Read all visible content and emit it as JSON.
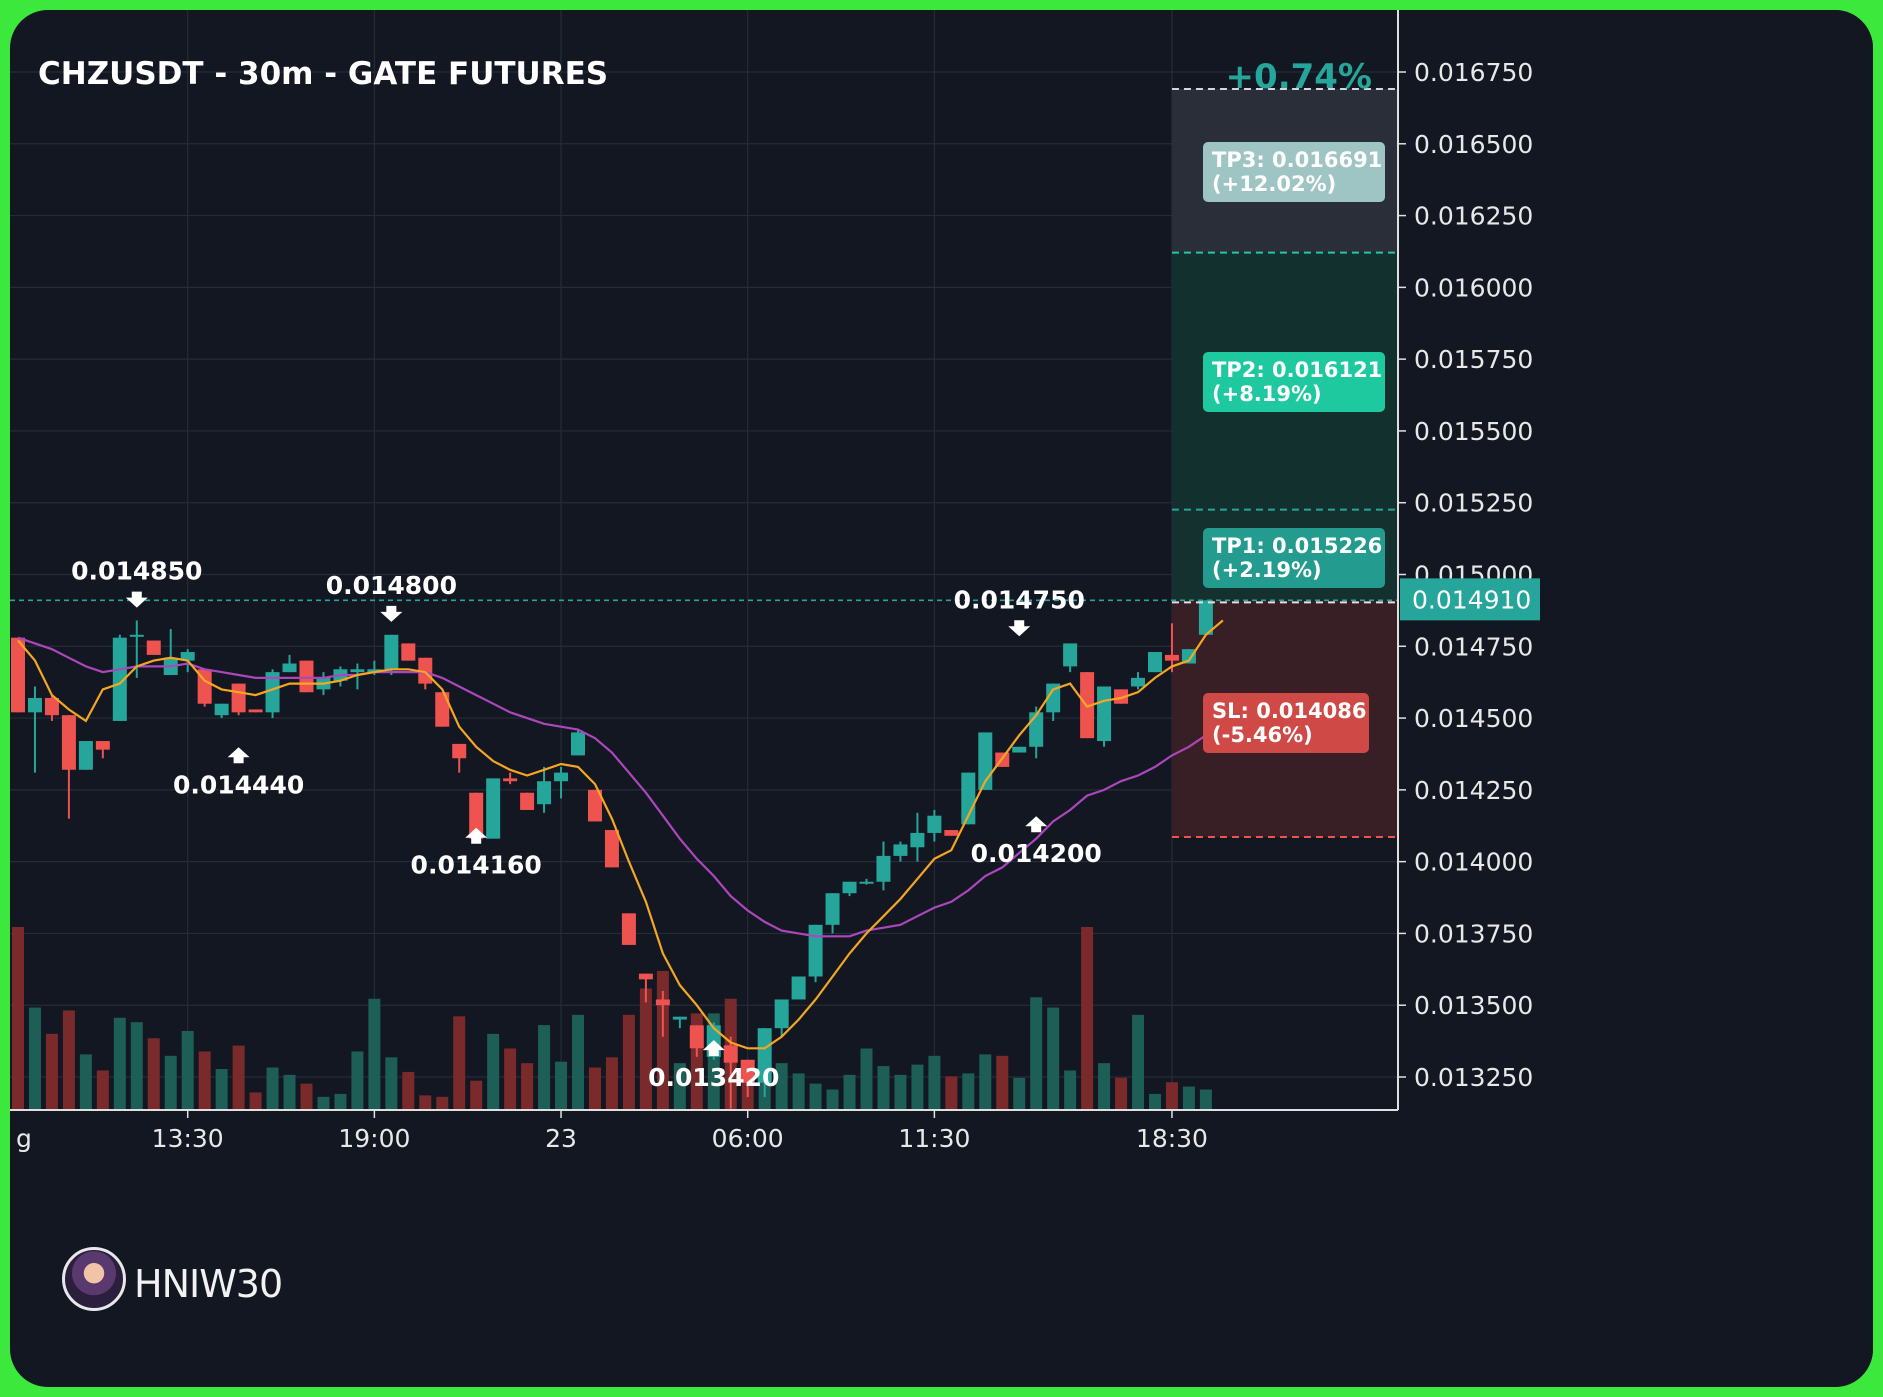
{
  "chart_data": {
    "type": "candlestick",
    "title": "CHZUSDT - 30m - GATE FUTURES",
    "change_label": "+0.74%",
    "ylim": [
      0.01315,
      0.01685
    ],
    "y_ticks": [
      "0.016750",
      "0.016500",
      "0.016250",
      "0.016000",
      "0.015750",
      "0.015500",
      "0.015250",
      "0.015000",
      "0.014750",
      "0.014500",
      "0.014250",
      "0.014000",
      "0.013750",
      "0.013500",
      "0.013250"
    ],
    "x_ticks": [
      {
        "label": "g",
        "index": -11
      },
      {
        "label": "13:30",
        "index": 10
      },
      {
        "label": "19:00",
        "index": 21
      },
      {
        "label": "23",
        "index": 32
      },
      {
        "label": "06:00",
        "index": 43
      },
      {
        "label": "11:30",
        "index": 54
      },
      {
        "label": "18:30",
        "index": 68
      }
    ],
    "current_price": "0.014910",
    "current_price_value": 0.01491,
    "levels": [
      {
        "name": "TP3",
        "label": "TP3: 0.016691",
        "pct": "(+12.02%)",
        "value": 0.016691
      },
      {
        "name": "TP2",
        "label": "TP2: 0.016121",
        "pct": "(+8.19%)",
        "value": 0.016121
      },
      {
        "name": "TP1",
        "label": "TP1: 0.015226",
        "pct": "(+2.19%)",
        "value": 0.015226
      },
      {
        "name": "SL",
        "label": "SL: 0.014086",
        "pct": "(-5.46%)",
        "value": 0.014086
      }
    ],
    "candles": [
      [
        0.01478,
        0.01478,
        0.01452,
        0.01452,
        1250
      ],
      [
        0.01452,
        0.01461,
        0.01431,
        0.01457,
        700
      ],
      [
        0.01457,
        0.01458,
        0.01449,
        0.01451,
        520
      ],
      [
        0.01451,
        0.01451,
        0.01415,
        0.01432,
        680
      ],
      [
        0.01432,
        0.01442,
        0.01432,
        0.01442,
        380
      ],
      [
        0.01442,
        0.01442,
        0.01436,
        0.01439,
        270
      ],
      [
        0.01449,
        0.01479,
        0.01449,
        0.01478,
        630
      ],
      [
        0.01479,
        0.01484,
        0.01464,
        0.01479,
        600
      ],
      [
        0.01477,
        0.01477,
        0.01472,
        0.01472,
        490
      ],
      [
        0.01465,
        0.01481,
        0.01465,
        0.01471,
        370
      ],
      [
        0.0147,
        0.01474,
        0.01466,
        0.01473,
        540
      ],
      [
        0.01467,
        0.01467,
        0.01454,
        0.01455,
        400
      ],
      [
        0.01451,
        0.01455,
        0.0145,
        0.01455,
        280
      ],
      [
        0.01462,
        0.01462,
        0.01451,
        0.01452,
        440
      ],
      [
        0.01453,
        0.01453,
        0.01452,
        0.01452,
        120
      ],
      [
        0.01452,
        0.01467,
        0.0145,
        0.01466,
        290
      ],
      [
        0.01466,
        0.01472,
        0.01466,
        0.01469,
        240
      ],
      [
        0.0147,
        0.0147,
        0.01459,
        0.01459,
        180
      ],
      [
        0.0146,
        0.01466,
        0.01458,
        0.01464,
        90
      ],
      [
        0.01463,
        0.01468,
        0.01461,
        0.01467,
        110
      ],
      [
        0.01466,
        0.01469,
        0.0146,
        0.01467,
        400
      ],
      [
        0.01466,
        0.0147,
        0.01465,
        0.01467,
        760
      ],
      [
        0.01467,
        0.01479,
        0.01465,
        0.01479,
        360
      ],
      [
        0.01476,
        0.01476,
        0.0147,
        0.0147,
        260
      ],
      [
        0.01471,
        0.01471,
        0.0146,
        0.01462,
        100
      ],
      [
        0.01459,
        0.01459,
        0.01447,
        0.01447,
        90
      ],
      [
        0.01441,
        0.01441,
        0.01431,
        0.01436,
        640
      ],
      [
        0.01424,
        0.01424,
        0.01408,
        0.01408,
        200
      ],
      [
        0.01408,
        0.01429,
        0.01408,
        0.01429,
        520
      ],
      [
        0.01429,
        0.01431,
        0.01427,
        0.01428,
        420
      ],
      [
        0.01424,
        0.01424,
        0.01418,
        0.01418,
        320
      ],
      [
        0.0142,
        0.01433,
        0.01417,
        0.01428,
        580
      ],
      [
        0.01428,
        0.01433,
        0.01422,
        0.01431,
        330
      ],
      [
        0.01437,
        0.01446,
        0.01437,
        0.01445,
        650
      ],
      [
        0.01425,
        0.01425,
        0.01414,
        0.01414,
        290
      ],
      [
        0.01411,
        0.01411,
        0.01398,
        0.01398,
        360
      ],
      [
        0.01382,
        0.01382,
        0.01371,
        0.01371,
        650
      ],
      [
        0.01361,
        0.01361,
        0.01351,
        0.01359,
        830
      ],
      [
        0.01352,
        0.01355,
        0.01339,
        0.0135,
        950
      ],
      [
        0.01345,
        0.01346,
        0.01342,
        0.01346,
        320
      ],
      [
        0.01343,
        0.01343,
        0.01332,
        0.01335,
        660
      ],
      [
        0.01332,
        0.01344,
        0.01331,
        0.01343,
        660
      ],
      [
        0.01336,
        0.01339,
        0.01314,
        0.0133,
        760
      ],
      [
        0.01331,
        0.01331,
        0.01318,
        0.01323,
        280
      ],
      [
        0.01323,
        0.01342,
        0.01318,
        0.01342,
        450
      ],
      [
        0.01342,
        0.01352,
        0.01339,
        0.01352,
        320
      ],
      [
        0.01352,
        0.0136,
        0.01352,
        0.0136,
        250
      ],
      [
        0.0136,
        0.01378,
        0.01358,
        0.01378,
        180
      ],
      [
        0.01378,
        0.01389,
        0.01375,
        0.01389,
        140
      ],
      [
        0.01389,
        0.01393,
        0.01388,
        0.01393,
        240
      ],
      [
        0.01393,
        0.01394,
        0.01392,
        0.01393,
        420
      ],
      [
        0.01393,
        0.01407,
        0.0139,
        0.01402,
        300
      ],
      [
        0.01402,
        0.01407,
        0.014,
        0.01406,
        240
      ],
      [
        0.01405,
        0.01417,
        0.014,
        0.0141,
        310
      ],
      [
        0.0141,
        0.01418,
        0.01407,
        0.01416,
        370
      ],
      [
        0.01411,
        0.01411,
        0.01409,
        0.01409,
        230
      ],
      [
        0.01413,
        0.01431,
        0.01413,
        0.01431,
        250
      ],
      [
        0.01425,
        0.01445,
        0.01425,
        0.01445,
        380
      ],
      [
        0.01438,
        0.01438,
        0.01433,
        0.01433,
        370
      ],
      [
        0.01438,
        0.0144,
        0.01438,
        0.0144,
        220
      ],
      [
        0.0144,
        0.01454,
        0.01436,
        0.01452,
        770
      ],
      [
        0.01452,
        0.01462,
        0.01449,
        0.01462,
        700
      ],
      [
        0.01468,
        0.01475,
        0.01466,
        0.01476,
        270
      ],
      [
        0.01466,
        0.01466,
        0.01443,
        0.01443,
        1250
      ],
      [
        0.01442,
        0.01461,
        0.0144,
        0.01461,
        320
      ],
      [
        0.0146,
        0.0146,
        0.01455,
        0.01455,
        220
      ],
      [
        0.01461,
        0.01466,
        0.0146,
        0.01464,
        650
      ],
      [
        0.01466,
        0.01473,
        0.01466,
        0.01473,
        110
      ],
      [
        0.01472,
        0.01483,
        0.01466,
        0.0147,
        190
      ],
      [
        0.01469,
        0.01474,
        0.01469,
        0.01474,
        160
      ],
      [
        0.01479,
        0.01491,
        0.01479,
        0.01491,
        140
      ]
    ],
    "ema_fast": [
      0.01477,
      0.0147,
      0.01458,
      0.01453,
      0.01449,
      0.0146,
      0.01462,
      0.01468,
      0.0147,
      0.01471,
      0.0147,
      0.01463,
      0.0146,
      0.01459,
      0.01458,
      0.0146,
      0.01462,
      0.01462,
      0.01462,
      0.01463,
      0.01465,
      0.01466,
      0.01467,
      0.01467,
      0.01466,
      0.0146,
      0.01447,
      0.0144,
      0.01435,
      0.01432,
      0.0143,
      0.01432,
      0.01434,
      0.01433,
      0.01427,
      0.01415,
      0.014,
      0.01386,
      0.01368,
      0.01357,
      0.0135,
      0.01342,
      0.01337,
      0.01335,
      0.01335,
      0.01339,
      0.01345,
      0.01352,
      0.0136,
      0.01368,
      0.01375,
      0.01381,
      0.01387,
      0.01394,
      0.01401,
      0.01404,
      0.01416,
      0.01428,
      0.01436,
      0.01444,
      0.01451,
      0.0146,
      0.01462,
      0.01454,
      0.01456,
      0.01457,
      0.01459,
      0.01464,
      0.01468,
      0.0147,
      0.01479,
      0.01484
    ],
    "ema_slow": [
      0.01478,
      0.01476,
      0.01474,
      0.01471,
      0.01468,
      0.01466,
      0.01467,
      0.01468,
      0.01468,
      0.01468,
      0.01469,
      0.01467,
      0.01466,
      0.01465,
      0.01464,
      0.01464,
      0.01464,
      0.01464,
      0.01464,
      0.01465,
      0.01465,
      0.01466,
      0.01466,
      0.01466,
      0.01466,
      0.01464,
      0.01461,
      0.01458,
      0.01455,
      0.01452,
      0.0145,
      0.01448,
      0.01447,
      0.01446,
      0.01443,
      0.01438,
      0.01431,
      0.01424,
      0.01416,
      0.01408,
      0.01401,
      0.01395,
      0.01388,
      0.01383,
      0.01379,
      0.01376,
      0.01375,
      0.01374,
      0.01374,
      0.01374,
      0.01376,
      0.01377,
      0.01378,
      0.01381,
      0.01384,
      0.01386,
      0.0139,
      0.01395,
      0.01398,
      0.01403,
      0.01408,
      0.01414,
      0.01418,
      0.01423,
      0.01425,
      0.01428,
      0.0143,
      0.01433,
      0.01437,
      0.0144,
      0.01444,
      0.01448
    ],
    "annotations": [
      {
        "label": "0.014850",
        "index": 7,
        "value": 0.01485,
        "dir": "down"
      },
      {
        "label": "0.014440",
        "index": 13,
        "value": 0.01444,
        "dir": "up"
      },
      {
        "label": "0.014800",
        "index": 22,
        "value": 0.0148,
        "dir": "down"
      },
      {
        "label": "0.014160",
        "index": 27,
        "value": 0.01416,
        "dir": "up"
      },
      {
        "label": "0.013420",
        "index": 41,
        "value": 0.01342,
        "dir": "up"
      },
      {
        "label": "0.014750",
        "index": 59,
        "value": 0.01475,
        "dir": "down"
      },
      {
        "label": "0.014200",
        "index": 60,
        "value": 0.0142,
        "dir": "up"
      }
    ],
    "colors": {
      "background": "#131722",
      "up": "#26a69a",
      "down": "#ef5350",
      "ema_fast": "#f5a623",
      "ema_slow": "#ab47bc",
      "tp3": "#9fc4c4",
      "tp2": "#1fc9a0",
      "tp1": "#239b8e",
      "sl": "#cf4a47",
      "change": "#26a69a",
      "current_price_bg": "#26a69a"
    }
  },
  "watermark": {
    "name": "HNIW30"
  }
}
